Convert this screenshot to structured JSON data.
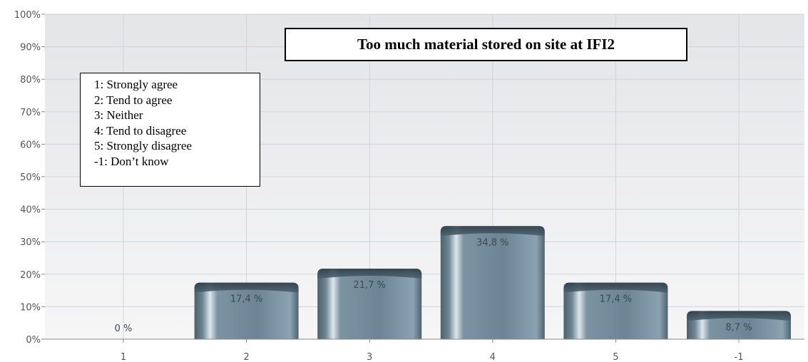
{
  "chart_data": {
    "type": "bar",
    "title": "Too much material stored on site at IFI2",
    "categories": [
      "1",
      "2",
      "3",
      "4",
      "5",
      "-1"
    ],
    "values": [
      0,
      17.4,
      21.7,
      34.8,
      17.4,
      8.7
    ],
    "value_labels": [
      "0 %",
      "17,4 %",
      "21,7 %",
      "34,8 %",
      "17,4 %",
      "8,7 %"
    ],
    "yticks": [
      "0%",
      "10%",
      "20%",
      "30%",
      "40%",
      "50%",
      "60%",
      "70%",
      "80%",
      "90%",
      "100%"
    ],
    "ylim": [
      0,
      100
    ],
    "grid": true,
    "legend": {
      "placement": "top-left",
      "items": [
        "1: Strongly agree",
        "2: Tend to agree",
        "3: Neither",
        "4: Tend to disagree",
        "5: Strongly disagree",
        "-1: Don’t know"
      ]
    },
    "colors": {
      "bar_body": "#6f8797",
      "bar_dark": "#3d4f5b",
      "bar_highlight": "#d9e3ea",
      "plot_bg_top": "#e6e7e9",
      "plot_bg_bottom": "#f5f5f6",
      "grid": "#cfd2d5"
    }
  }
}
